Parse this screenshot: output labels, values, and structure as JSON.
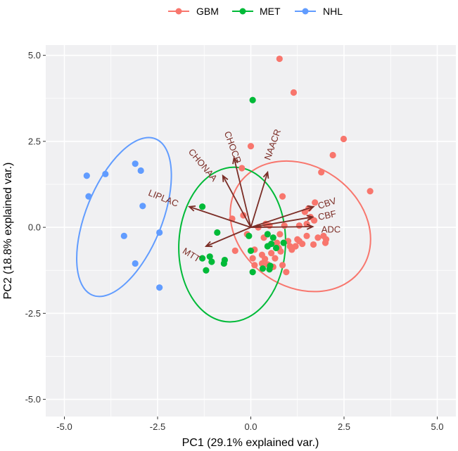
{
  "chart_data": {
    "type": "scatter",
    "title": "",
    "xlabel": "PC1 (29.1% explained var.)",
    "ylabel": "PC2 (18.8% explained var.)",
    "xlim": [
      -5.5,
      5.5
    ],
    "ylim": [
      -5.5,
      5.3
    ],
    "xticks": [
      -5.0,
      -2.5,
      0.0,
      2.5,
      5.0
    ],
    "xtick_labels": [
      "-5.0",
      "-2.5",
      "0.0",
      "2.5",
      "5.0"
    ],
    "yticks": [
      -5.0,
      -2.5,
      0.0,
      2.5,
      5.0
    ],
    "ytick_labels": [
      "-5.0",
      "-2.5",
      "0.0",
      "2.5",
      "5.0"
    ],
    "grid": true,
    "legend_position": "top",
    "series": [
      {
        "name": "GBM",
        "color": "#F8766D",
        "points": [
          [
            0.77,
            4.9
          ],
          [
            1.15,
            3.92
          ],
          [
            2.49,
            2.57
          ],
          [
            2.2,
            2.1
          ],
          [
            0.0,
            2.36
          ],
          [
            -0.24,
            1.72
          ],
          [
            1.89,
            1.6
          ],
          [
            3.2,
            1.05
          ],
          [
            0.85,
            0.9
          ],
          [
            1.72,
            0.72
          ],
          [
            1.55,
            0.55
          ],
          [
            1.45,
            0.45
          ],
          [
            1.6,
            0.3
          ],
          [
            1.7,
            0.2
          ],
          [
            1.5,
            0.1
          ],
          [
            1.3,
            0.05
          ],
          [
            0.9,
            0.05
          ],
          [
            0.5,
            0.05
          ],
          [
            0.2,
            0.0
          ],
          [
            -0.1,
            -0.2
          ],
          [
            0.35,
            -0.3
          ],
          [
            0.7,
            -0.45
          ],
          [
            1.0,
            -0.4
          ],
          [
            1.25,
            -0.35
          ],
          [
            1.5,
            -0.25
          ],
          [
            1.8,
            -0.3
          ],
          [
            1.95,
            -0.25
          ],
          [
            2.0,
            -0.45
          ],
          [
            1.3,
            -0.4
          ],
          [
            1.05,
            -0.55
          ],
          [
            0.8,
            -0.7
          ],
          [
            0.55,
            -0.75
          ],
          [
            0.3,
            -0.8
          ],
          [
            0.1,
            -0.65
          ],
          [
            0.65,
            -0.9
          ],
          [
            0.05,
            -0.9
          ],
          [
            0.38,
            -0.92
          ],
          [
            0.85,
            -1.1
          ],
          [
            0.6,
            -1.15
          ],
          [
            0.95,
            -1.3
          ],
          [
            0.1,
            -1.1
          ],
          [
            0.3,
            -1.05
          ],
          [
            -0.42,
            -0.68
          ],
          [
            0.75,
            -0.6
          ],
          [
            1.1,
            -0.65
          ],
          [
            1.38,
            -0.48
          ],
          [
            1.68,
            -0.5
          ],
          [
            2.02,
            -0.35
          ],
          [
            0.45,
            -1.08
          ],
          [
            1.2,
            -0.55
          ],
          [
            -0.5,
            0.25
          ],
          [
            -0.2,
            0.35
          ],
          [
            0.4,
            0.1
          ],
          [
            0.78,
            -0.2
          ]
        ]
      },
      {
        "name": "MET",
        "color": "#00BA38",
        "points": [
          [
            0.05,
            3.7
          ],
          [
            -1.3,
            0.6
          ],
          [
            -0.9,
            -0.15
          ],
          [
            -0.05,
            -0.25
          ],
          [
            -1.3,
            -0.9
          ],
          [
            -1.1,
            -0.85
          ],
          [
            -1.05,
            -1.0
          ],
          [
            -1.2,
            -1.25
          ],
          [
            -0.7,
            -0.95
          ],
          [
            -0.72,
            -1.05
          ],
          [
            0.0,
            -0.68
          ],
          [
            0.45,
            -0.2
          ],
          [
            0.6,
            -0.3
          ],
          [
            0.55,
            -0.48
          ],
          [
            0.88,
            -0.45
          ],
          [
            0.68,
            -0.6
          ],
          [
            0.52,
            -1.12
          ],
          [
            0.32,
            -1.2
          ],
          [
            0.5,
            -1.22
          ],
          [
            0.05,
            -1.3
          ],
          [
            0.45,
            -0.55
          ]
        ]
      },
      {
        "name": "NHL",
        "color": "#619CFF",
        "points": [
          [
            -3.9,
            1.55
          ],
          [
            -3.1,
            1.85
          ],
          [
            -2.95,
            1.65
          ],
          [
            -4.4,
            1.5
          ],
          [
            -4.35,
            0.9
          ],
          [
            -2.9,
            0.62
          ],
          [
            -2.45,
            -0.15
          ],
          [
            -3.4,
            -0.25
          ],
          [
            -3.1,
            -1.05
          ],
          [
            -2.45,
            -1.75
          ]
        ]
      }
    ],
    "ellipses": [
      {
        "name": "GBM",
        "color": "#F8766D",
        "cx": 1.33,
        "cy": 0.03,
        "rx": 2.0,
        "ry": 1.75,
        "angle_deg": 35
      },
      {
        "name": "MET",
        "color": "#00BA38",
        "cx": -0.5,
        "cy": -0.5,
        "rx": 1.43,
        "ry": 2.25,
        "angle_deg": 3
      },
      {
        "name": "NHL",
        "color": "#619CFF",
        "cx": -3.4,
        "cy": 0.3,
        "rx": 1.02,
        "ry": 2.45,
        "angle_deg": 22
      }
    ],
    "loadings": [
      {
        "name": "CHOCR",
        "origin": [
          0.0,
          0.0
        ],
        "end": [
          -0.45,
          2.02
        ]
      },
      {
        "name": "NAACR",
        "origin": [
          0.0,
          0.0
        ],
        "end": [
          0.45,
          1.6
        ]
      },
      {
        "name": "CHONAA",
        "origin": [
          0.0,
          0.0
        ],
        "end": [
          -0.75,
          1.5
        ]
      },
      {
        "name": "LIPLAC",
        "origin": [
          0.0,
          0.0
        ],
        "end": [
          -1.65,
          0.6
        ]
      },
      {
        "name": "CBV",
        "origin": [
          0.0,
          0.0
        ],
        "end": [
          1.68,
          0.6
        ]
      },
      {
        "name": "CBF",
        "origin": [
          0.0,
          0.0
        ],
        "end": [
          1.66,
          0.3
        ]
      },
      {
        "name": "ADC",
        "origin": [
          0.0,
          0.0
        ],
        "end": [
          1.66,
          0.02
        ]
      },
      {
        "name": "MTT",
        "origin": [
          0.0,
          0.0
        ],
        "end": [
          -1.2,
          -0.55
        ]
      }
    ],
    "loading_labels": [
      {
        "name": "CHOCR",
        "pos": [
          -0.5,
          2.32
        ],
        "rotation": 70
      },
      {
        "name": "NAACR",
        "pos": [
          0.6,
          2.4
        ],
        "rotation": -70
      },
      {
        "name": "CHONAA",
        "pos": [
          -1.3,
          1.8
        ],
        "rotation": 50
      },
      {
        "name": "LIPLAC",
        "pos": [
          -2.35,
          0.83
        ],
        "rotation": 22
      },
      {
        "name": "CBV",
        "pos": [
          2.05,
          0.68
        ],
        "rotation": -18
      },
      {
        "name": "CBF",
        "pos": [
          2.05,
          0.33
        ],
        "rotation": -12
      },
      {
        "name": "ADC",
        "pos": [
          2.15,
          -0.08
        ],
        "rotation": 0
      },
      {
        "name": "MTT",
        "pos": [
          -1.6,
          -0.82
        ],
        "rotation": 32
      }
    ]
  }
}
